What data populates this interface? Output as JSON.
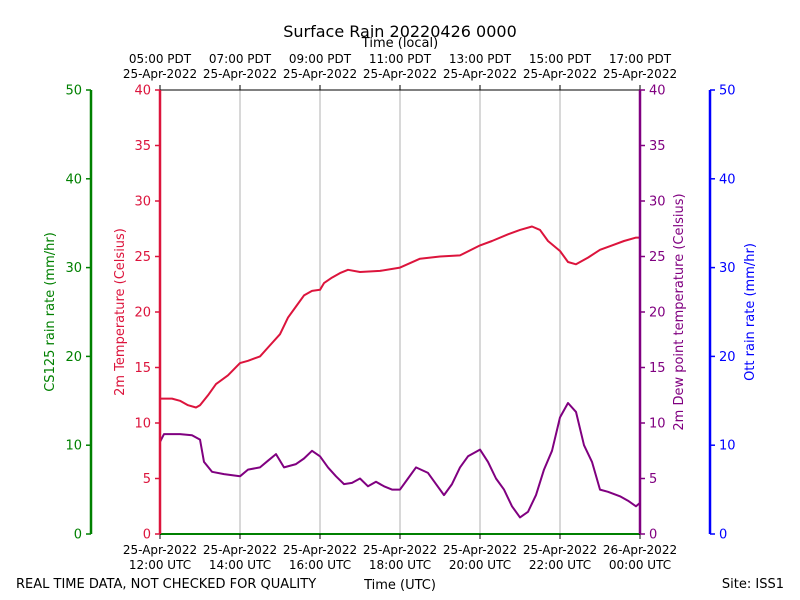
{
  "chart_data": {
    "type": "line",
    "title": "Surface Rain 20220426 0000",
    "top_axis_label": "Time (local)",
    "xlabel": "Time (UTC)",
    "footer_left": "REAL TIME DATA, NOT CHECKED FOR QUALITY",
    "footer_right": "Site: ISS1",
    "x_range_utc_hours": [
      12,
      24
    ],
    "bottom_ticks": [
      {
        "t": 12,
        "line1": "25-Apr-2022",
        "line2": "12:00 UTC"
      },
      {
        "t": 14,
        "line1": "25-Apr-2022",
        "line2": "14:00 UTC"
      },
      {
        "t": 16,
        "line1": "25-Apr-2022",
        "line2": "16:00 UTC"
      },
      {
        "t": 18,
        "line1": "25-Apr-2022",
        "line2": "18:00 UTC"
      },
      {
        "t": 20,
        "line1": "25-Apr-2022",
        "line2": "20:00 UTC"
      },
      {
        "t": 22,
        "line1": "25-Apr-2022",
        "line2": "22:00 UTC"
      },
      {
        "t": 24,
        "line1": "26-Apr-2022",
        "line2": "00:00 UTC"
      }
    ],
    "top_ticks": [
      {
        "t": 12,
        "line1": "05:00 PDT",
        "line2": "25-Apr-2022"
      },
      {
        "t": 14,
        "line1": "07:00 PDT",
        "line2": "25-Apr-2022"
      },
      {
        "t": 16,
        "line1": "09:00 PDT",
        "line2": "25-Apr-2022"
      },
      {
        "t": 18,
        "line1": "11:00 PDT",
        "line2": "25-Apr-2022"
      },
      {
        "t": 20,
        "line1": "13:00 PDT",
        "line2": "25-Apr-2022"
      },
      {
        "t": 22,
        "line1": "15:00 PDT",
        "line2": "25-Apr-2022"
      },
      {
        "t": 24,
        "line1": "17:00 PDT",
        "line2": "25-Apr-2022"
      }
    ],
    "axes": {
      "temp": {
        "label": "2m Temperature (Celsius)",
        "ylim": [
          0,
          40
        ],
        "ticks": [
          0,
          5,
          10,
          15,
          20,
          25,
          30,
          35,
          40
        ],
        "color": "#dc143c"
      },
      "dew": {
        "label": "2m Dew point temperature (Celsius)",
        "ylim": [
          0,
          40
        ],
        "ticks": [
          0,
          5,
          10,
          15,
          20,
          25,
          30,
          35,
          40
        ],
        "color": "#800080"
      },
      "cs125": {
        "label": "CS125 rain rate (mm/hr)",
        "ylim": [
          0,
          50
        ],
        "ticks": [
          0,
          10,
          20,
          30,
          40,
          50
        ],
        "color": "#008000"
      },
      "ott": {
        "label": "Ott rain rate (mm/hr)",
        "ylim": [
          0,
          50
        ],
        "ticks": [
          0,
          10,
          20,
          30,
          40,
          50
        ],
        "color": "#0000ff"
      }
    },
    "grid": "vertical",
    "series": [
      {
        "key": "temp",
        "axis": "temp",
        "color": "#dc143c",
        "points": [
          [
            12.0,
            12.2
          ],
          [
            12.3,
            12.2
          ],
          [
            12.5,
            12.0
          ],
          [
            12.7,
            11.6
          ],
          [
            12.9,
            11.4
          ],
          [
            13.0,
            11.6
          ],
          [
            13.2,
            12.5
          ],
          [
            13.4,
            13.5
          ],
          [
            13.7,
            14.3
          ],
          [
            14.0,
            15.4
          ],
          [
            14.2,
            15.6
          ],
          [
            14.5,
            16.0
          ],
          [
            14.7,
            16.8
          ],
          [
            15.0,
            18.0
          ],
          [
            15.2,
            19.5
          ],
          [
            15.4,
            20.5
          ],
          [
            15.6,
            21.5
          ],
          [
            15.8,
            21.9
          ],
          [
            16.0,
            22.0
          ],
          [
            16.1,
            22.6
          ],
          [
            16.3,
            23.1
          ],
          [
            16.5,
            23.5
          ],
          [
            16.7,
            23.8
          ],
          [
            17.0,
            23.6
          ],
          [
            17.5,
            23.7
          ],
          [
            18.0,
            24.0
          ],
          [
            18.5,
            24.8
          ],
          [
            19.0,
            25.0
          ],
          [
            19.5,
            25.1
          ],
          [
            20.0,
            26.0
          ],
          [
            20.3,
            26.4
          ],
          [
            20.7,
            27.0
          ],
          [
            21.0,
            27.4
          ],
          [
            21.3,
            27.7
          ],
          [
            21.5,
            27.4
          ],
          [
            21.7,
            26.4
          ],
          [
            22.0,
            25.5
          ],
          [
            22.2,
            24.5
          ],
          [
            22.4,
            24.3
          ],
          [
            22.7,
            24.9
          ],
          [
            23.0,
            25.6
          ],
          [
            23.3,
            26.0
          ],
          [
            23.6,
            26.4
          ],
          [
            23.9,
            26.7
          ],
          [
            24.0,
            26.7
          ]
        ]
      },
      {
        "key": "dew",
        "axis": "dew",
        "color": "#800080",
        "points": [
          [
            12.0,
            8.3
          ],
          [
            12.1,
            9.0
          ],
          [
            12.5,
            9.0
          ],
          [
            12.8,
            8.9
          ],
          [
            13.0,
            8.5
          ],
          [
            13.1,
            6.5
          ],
          [
            13.3,
            5.6
          ],
          [
            13.6,
            5.4
          ],
          [
            14.0,
            5.2
          ],
          [
            14.2,
            5.8
          ],
          [
            14.5,
            6.0
          ],
          [
            14.7,
            6.6
          ],
          [
            14.9,
            7.2
          ],
          [
            15.1,
            6.0
          ],
          [
            15.4,
            6.3
          ],
          [
            15.6,
            6.8
          ],
          [
            15.8,
            7.5
          ],
          [
            16.0,
            7.0
          ],
          [
            16.2,
            6.0
          ],
          [
            16.4,
            5.2
          ],
          [
            16.6,
            4.5
          ],
          [
            16.8,
            4.6
          ],
          [
            17.0,
            5.0
          ],
          [
            17.2,
            4.3
          ],
          [
            17.4,
            4.7
          ],
          [
            17.6,
            4.3
          ],
          [
            17.8,
            4.0
          ],
          [
            18.0,
            4.0
          ],
          [
            18.2,
            5.0
          ],
          [
            18.4,
            6.0
          ],
          [
            18.7,
            5.5
          ],
          [
            18.9,
            4.5
          ],
          [
            19.1,
            3.5
          ],
          [
            19.3,
            4.5
          ],
          [
            19.5,
            6.0
          ],
          [
            19.7,
            7.0
          ],
          [
            20.0,
            7.6
          ],
          [
            20.2,
            6.5
          ],
          [
            20.4,
            5.0
          ],
          [
            20.6,
            4.0
          ],
          [
            20.8,
            2.5
          ],
          [
            21.0,
            1.5
          ],
          [
            21.2,
            2.0
          ],
          [
            21.4,
            3.5
          ],
          [
            21.6,
            5.8
          ],
          [
            21.8,
            7.5
          ],
          [
            22.0,
            10.5
          ],
          [
            22.2,
            11.8
          ],
          [
            22.4,
            11.0
          ],
          [
            22.6,
            8.0
          ],
          [
            22.8,
            6.5
          ],
          [
            23.0,
            4.0
          ],
          [
            23.2,
            3.8
          ],
          [
            23.5,
            3.4
          ],
          [
            23.7,
            3.0
          ],
          [
            23.9,
            2.5
          ],
          [
            24.0,
            2.8
          ]
        ]
      }
    ]
  }
}
